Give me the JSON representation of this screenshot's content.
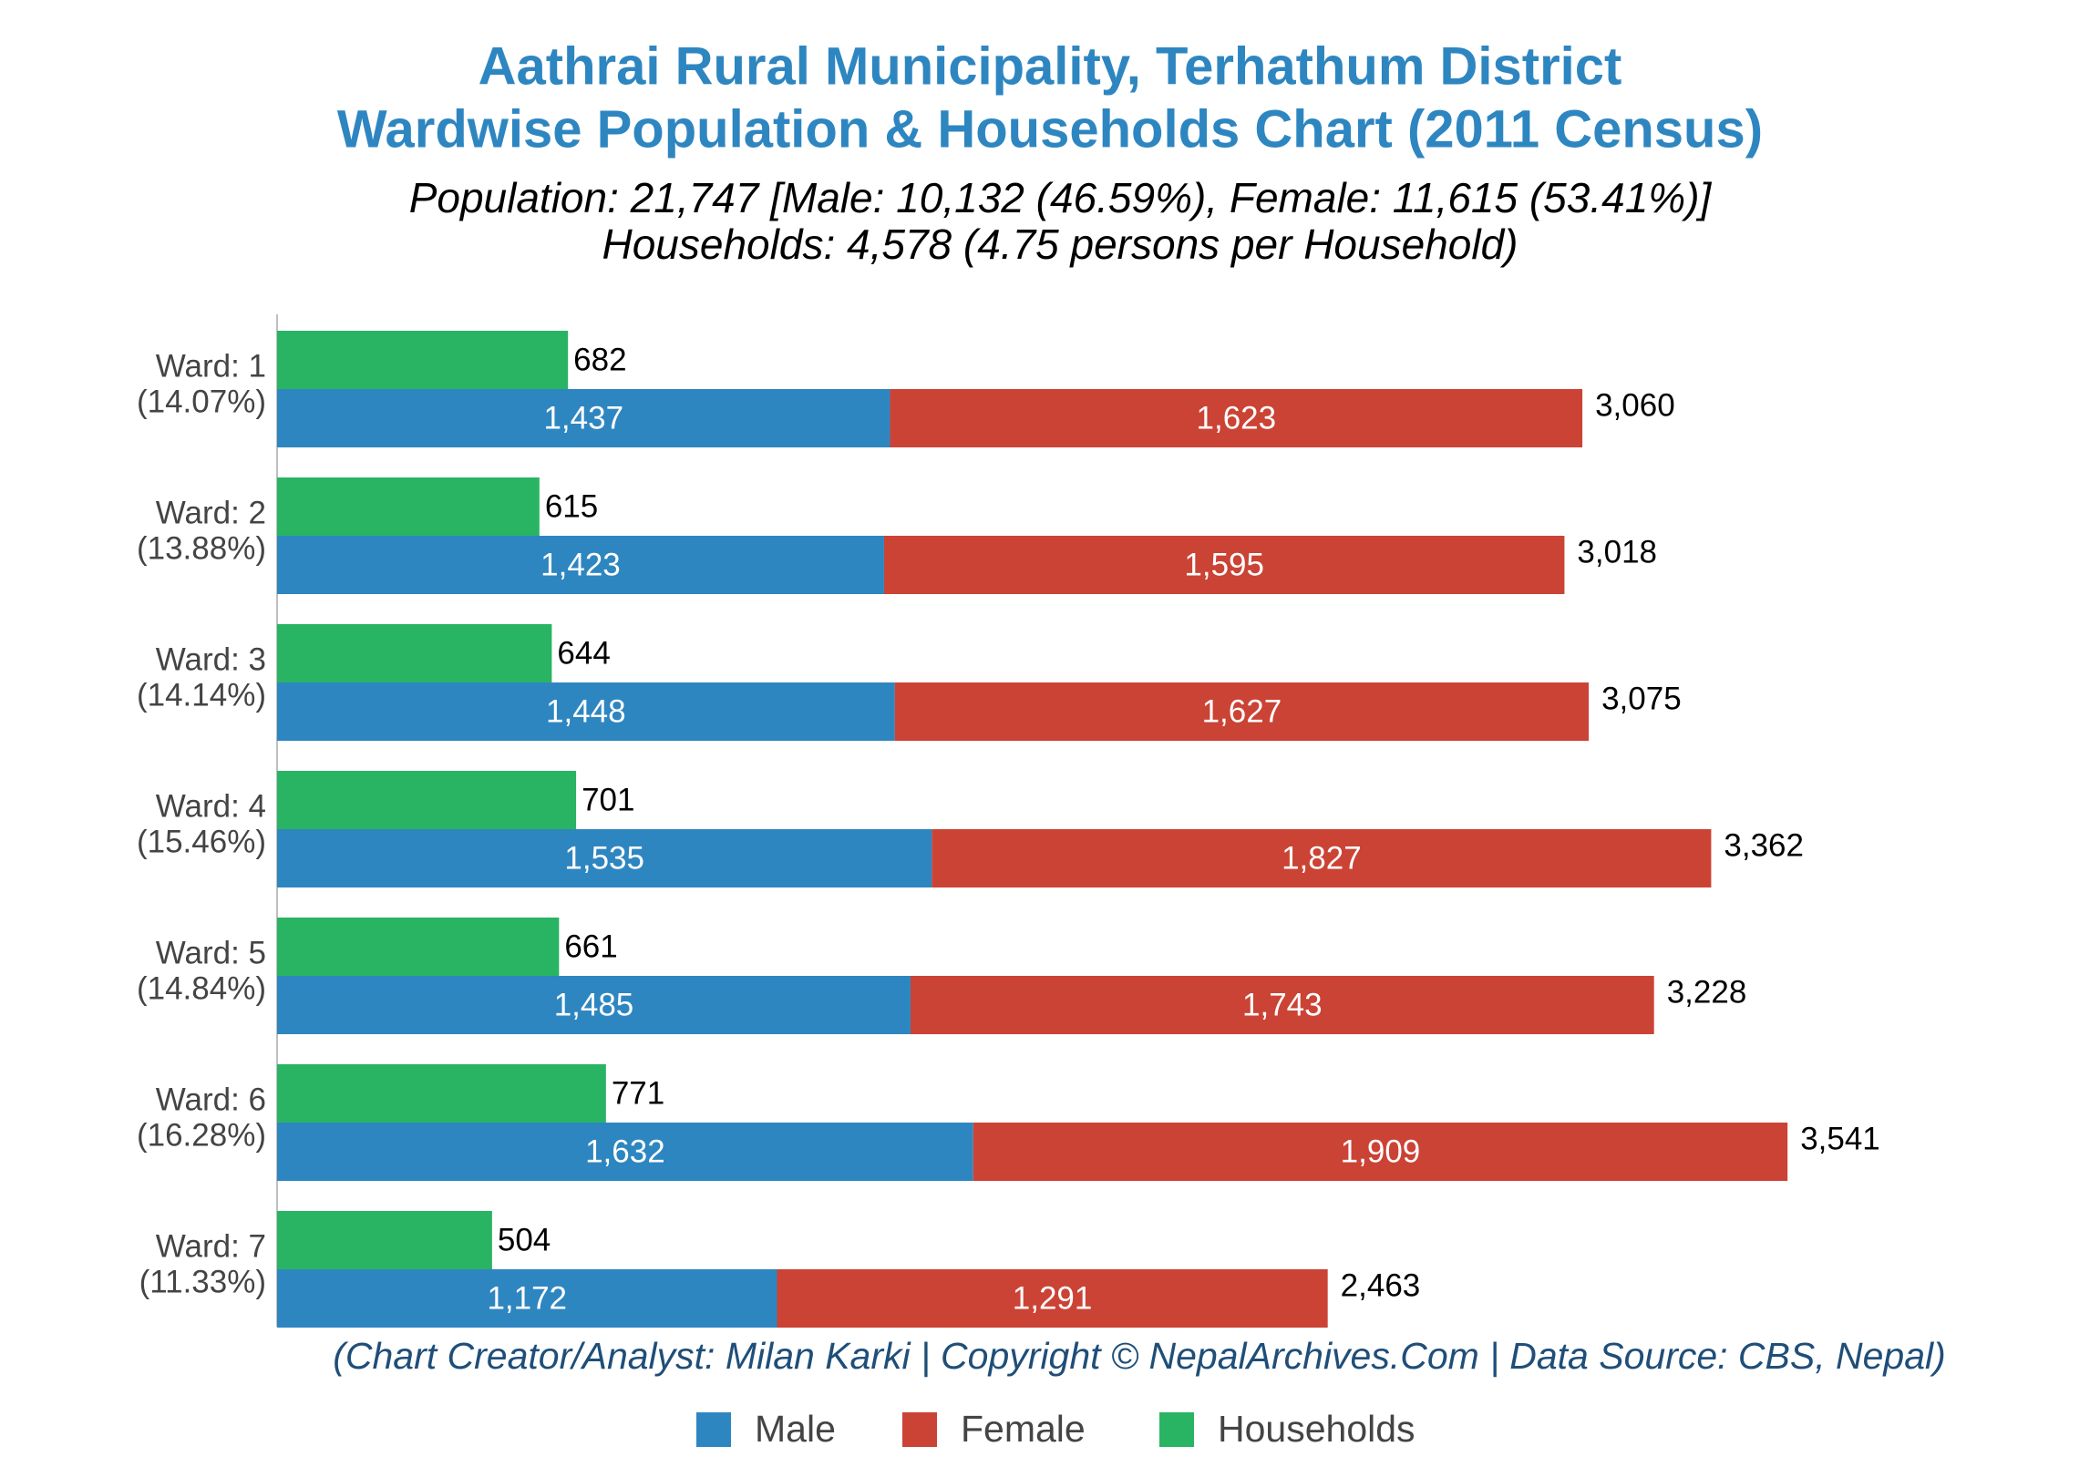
{
  "chart_data": {
    "type": "bar",
    "orientation": "horizontal",
    "title": [
      "Aathrai Rural Municipality, Terhathum District",
      "Wardwise Population & Households Chart (2011 Census)"
    ],
    "subtitle": [
      "Population: 21,747 [Male: 10,132 (46.59%), Female: 11,615 (53.41%)]",
      "Households: 4,578 (4.75 persons per Household)"
    ],
    "credit": "(Chart Creator/Analyst: Milan Karki | Copyright © NepalArchives.Com | Data Source: CBS, Nepal)",
    "categories": [
      "Ward: 1",
      "Ward: 2",
      "Ward: 3",
      "Ward: 4",
      "Ward: 5",
      "Ward: 6",
      "Ward: 7"
    ],
    "category_sublabels": [
      "(14.07%)",
      "(13.88%)",
      "(14.14%)",
      "(15.46%)",
      "(14.84%)",
      "(16.28%)",
      "(11.33%)"
    ],
    "series": [
      {
        "name": "Male",
        "color": "#2e86c1",
        "stack": "population",
        "values": [
          1437,
          1423,
          1448,
          1535,
          1485,
          1632,
          1172
        ],
        "value_labels": [
          "1,437",
          "1,423",
          "1,448",
          "1,535",
          "1,485",
          "1,632",
          "1,172"
        ]
      },
      {
        "name": "Female",
        "color": "#cb4335",
        "stack": "population",
        "values": [
          1623,
          1595,
          1627,
          1827,
          1743,
          1909,
          1291
        ],
        "value_labels": [
          "1,623",
          "1,595",
          "1,627",
          "1,827",
          "1,743",
          "1,909",
          "1,291"
        ]
      },
      {
        "name": "Households",
        "color": "#28b463",
        "stack": "households",
        "values": [
          682,
          615,
          644,
          701,
          661,
          771,
          504
        ]
      }
    ],
    "totals": [
      3060,
      3018,
      3075,
      3362,
      3228,
      3541,
      2463
    ],
    "total_labels": [
      "3,060",
      "3,018",
      "3,075",
      "3,362",
      "3,228",
      "3,541",
      "2,463"
    ],
    "xlim": [
      0,
      4250
    ],
    "legend": "bottom"
  }
}
